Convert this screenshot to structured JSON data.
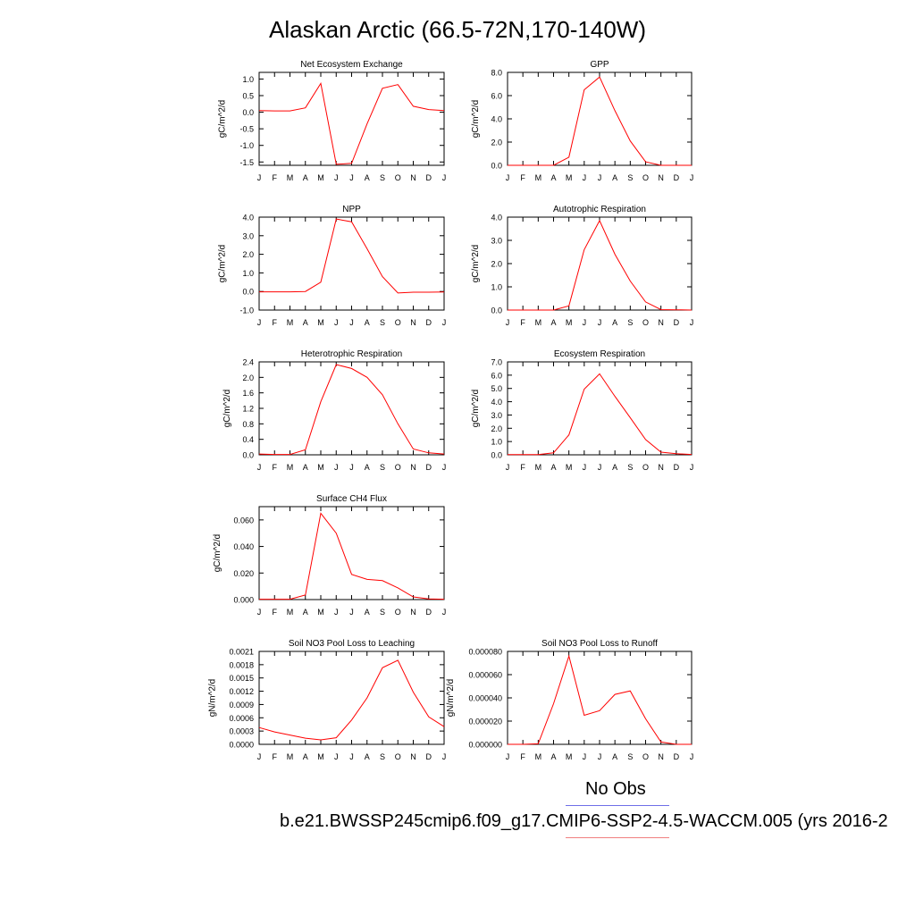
{
  "title": "Alaskan Arctic (66.5-72N,170-140W)",
  "legend": {
    "obs_label": "No Obs",
    "case_label": "b.e21.BWSSP245cmip6.f09_g17.CMIP6-SSP2-4.5-WACCM.005 (yrs 2016-2",
    "obs_color": "#6f6fe8",
    "case_color": "#f08080"
  },
  "line_color": "#ff0000",
  "months": [
    "J",
    "F",
    "M",
    "A",
    "M",
    "J",
    "J",
    "A",
    "S",
    "O",
    "N",
    "D",
    "J"
  ],
  "chart_data": [
    {
      "type": "line",
      "title": "Net Ecosystem Exchange",
      "ylabel": "gC/m^2/d",
      "ylim": [
        -1.6,
        1.2
      ],
      "yticks": [
        1.0,
        0.5,
        0.0,
        -0.5,
        -1.0,
        -1.5
      ],
      "ytick_labels": [
        "1.0",
        "0.5",
        "0.0",
        "-0.5",
        "-1.0",
        "-1.5"
      ],
      "values": [
        0.05,
        0.04,
        0.04,
        0.13,
        0.87,
        -1.57,
        -1.54,
        -0.35,
        0.72,
        0.83,
        0.18,
        0.08,
        0.05
      ]
    },
    {
      "type": "line",
      "title": "GPP",
      "ylabel": "gC/m^2/d",
      "ylim": [
        0,
        8
      ],
      "yticks": [
        8.0,
        6.0,
        4.0,
        2.0,
        0.0
      ],
      "ytick_labels": [
        "8.0",
        "6.0",
        "4.0",
        "2.0",
        "0.0"
      ],
      "values": [
        0.0,
        0.0,
        0.0,
        0.0,
        0.7,
        6.5,
        7.6,
        4.7,
        2.1,
        0.3,
        0.0,
        0.0,
        0.0
      ]
    },
    {
      "type": "line",
      "title": "NPP",
      "ylabel": "gC/m^2/d",
      "ylim": [
        -1,
        4
      ],
      "yticks": [
        4.0,
        3.0,
        2.0,
        1.0,
        0.0,
        -1.0
      ],
      "ytick_labels": [
        "4.0",
        "3.0",
        "2.0",
        "1.0",
        "0.0",
        "-1.0"
      ],
      "values": [
        -0.02,
        -0.02,
        -0.02,
        0.0,
        0.5,
        3.9,
        3.75,
        2.3,
        0.8,
        -0.08,
        -0.04,
        -0.04,
        -0.03
      ]
    },
    {
      "type": "line",
      "title": "Autotrophic Respiration",
      "ylabel": "gC/m^2/d",
      "ylim": [
        0,
        4
      ],
      "yticks": [
        4.0,
        3.0,
        2.0,
        1.0,
        0.0
      ],
      "ytick_labels": [
        "4.0",
        "3.0",
        "2.0",
        "1.0",
        "0.0"
      ],
      "values": [
        0.0,
        0.0,
        0.0,
        0.0,
        0.18,
        2.6,
        3.85,
        2.4,
        1.25,
        0.35,
        0.02,
        0.01,
        0.0
      ]
    },
    {
      "type": "line",
      "title": "Heterotrophic Respiration",
      "ylabel": "gC/m^2/d",
      "ylim": [
        0,
        2.4
      ],
      "yticks": [
        2.4,
        2.0,
        1.6,
        1.2,
        0.8,
        0.4,
        0.0
      ],
      "ytick_labels": [
        "2.4",
        "2.0",
        "1.6",
        "1.2",
        "0.8",
        "0.4",
        "0.0"
      ],
      "values": [
        0.02,
        0.01,
        0.01,
        0.13,
        1.37,
        2.33,
        2.23,
        2.0,
        1.55,
        0.8,
        0.15,
        0.05,
        0.02
      ]
    },
    {
      "type": "line",
      "title": "Ecosystem Respiration",
      "ylabel": "gC/m^2/d",
      "ylim": [
        0,
        7
      ],
      "yticks": [
        7.0,
        6.0,
        5.0,
        4.0,
        3.0,
        2.0,
        1.0,
        0.0
      ],
      "ytick_labels": [
        "7.0",
        "6.0",
        "5.0",
        "4.0",
        "3.0",
        "2.0",
        "1.0",
        "0.0"
      ],
      "values": [
        0.02,
        0.02,
        0.02,
        0.15,
        1.5,
        4.95,
        6.1,
        4.4,
        2.8,
        1.15,
        0.2,
        0.08,
        0.03
      ]
    },
    {
      "type": "line",
      "title": "Surface CH4 Flux",
      "ylabel": "gC/m^2/d",
      "ylim": [
        0,
        0.07
      ],
      "yticks": [
        0.06,
        0.04,
        0.02,
        0.0
      ],
      "ytick_labels": [
        "0.060",
        "0.040",
        "0.020",
        "0.000"
      ],
      "values": [
        0.0003,
        0.0003,
        0.0003,
        0.0035,
        0.065,
        0.05,
        0.019,
        0.0152,
        0.0143,
        0.0088,
        0.002,
        0.0005,
        0.0003
      ]
    },
    {
      "type": "line",
      "title": "Soil NO3 Pool Loss to Leaching",
      "ylabel": "gN/m^2/d",
      "ylim": [
        0,
        0.0021
      ],
      "yticks": [
        0.0021,
        0.0018,
        0.0015,
        0.0012,
        0.0009,
        0.0006,
        0.0003,
        0.0
      ],
      "ytick_labels": [
        "0.0021",
        "0.0018",
        "0.0015",
        "0.0012",
        "0.0009",
        "0.0006",
        "0.0003",
        "0.0000"
      ],
      "values": [
        0.00038,
        0.00028,
        0.00021,
        0.00014,
        0.0001,
        0.00015,
        0.00055,
        0.00105,
        0.00173,
        0.0019,
        0.00118,
        0.00062,
        0.0004
      ]
    },
    {
      "type": "line",
      "title": "Soil NO3 Pool Loss to Runoff",
      "ylabel": "gN/m^2/d",
      "ylim": [
        0,
        8e-05
      ],
      "yticks": [
        8e-05,
        6e-05,
        4e-05,
        2e-05,
        0.0
      ],
      "ytick_labels": [
        "0.000080",
        "0.000060",
        "0.000040",
        "0.000020",
        "0.000000"
      ],
      "values": [
        0.0,
        0.0,
        5e-07,
        3.5e-05,
        7.6e-05,
        2.5e-05,
        2.9e-05,
        4.3e-05,
        4.6e-05,
        2.2e-05,
        2e-06,
        0.0,
        0.0
      ]
    }
  ]
}
